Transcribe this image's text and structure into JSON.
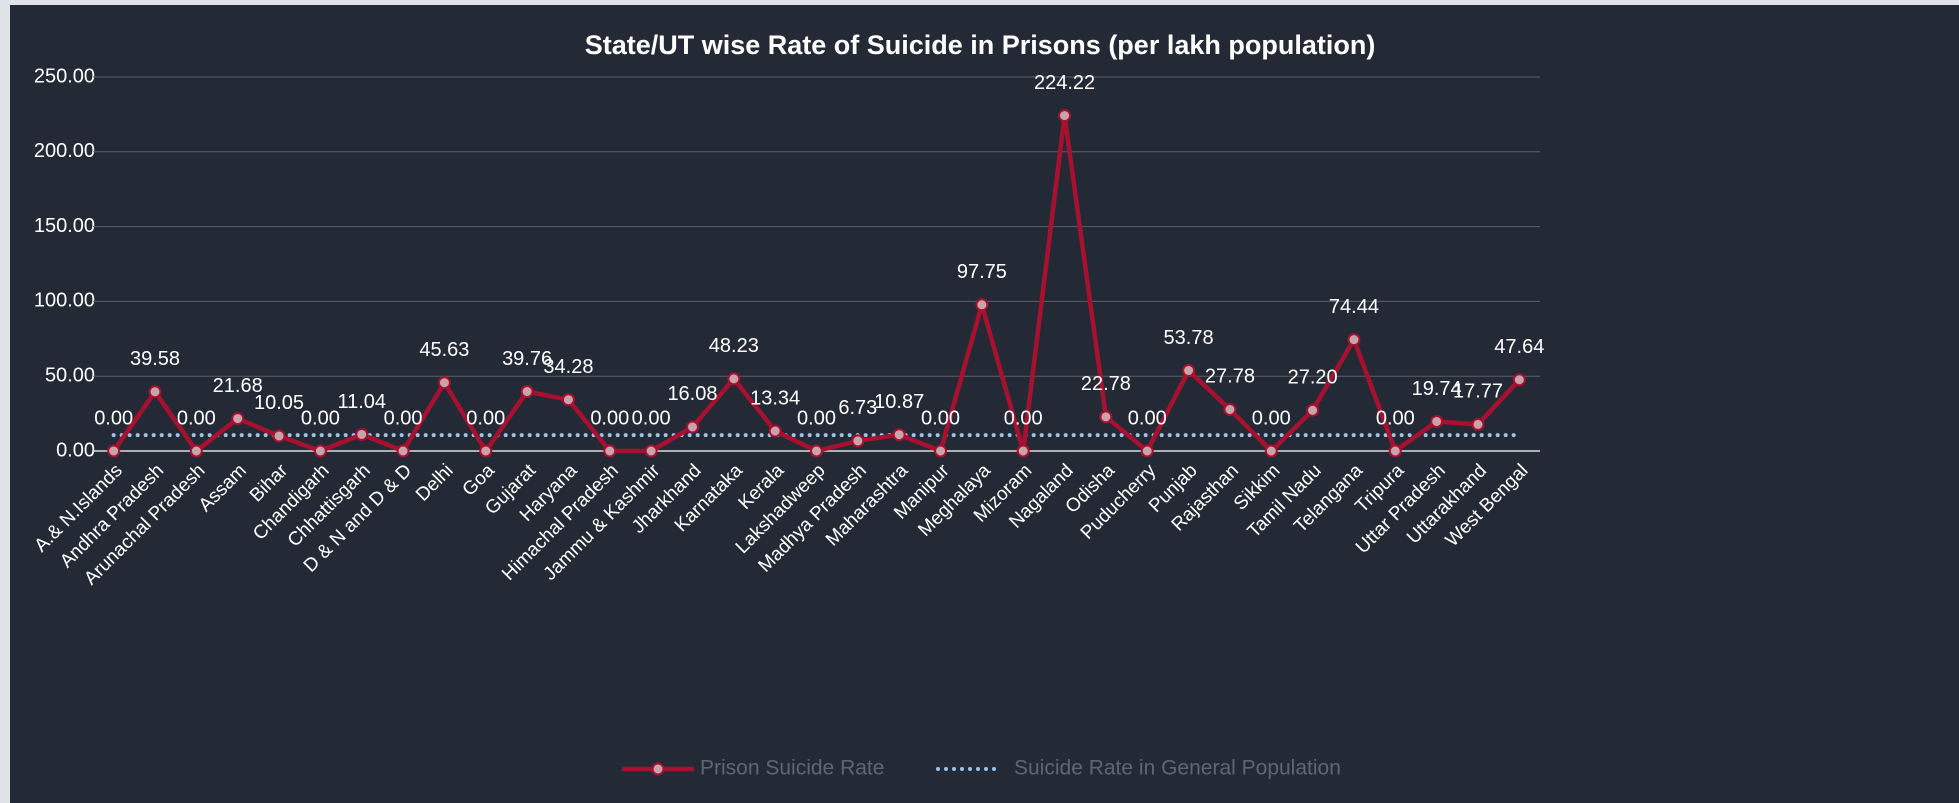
{
  "chart_data": {
    "type": "line",
    "title": "State/UT wise Rate of Suicide in Prisons (per lakh population)",
    "categories": [
      "A.& N.Islands",
      "Andhra Pradesh",
      "Arunachal Pradesh",
      "Assam",
      "Bihar",
      "Chandigarh",
      "Chhattisgarh",
      "D & N and D & D",
      "Delhi",
      "Goa",
      "Gujarat",
      "Haryana",
      "Himachal Pradesh",
      "Jammu & Kashmir",
      "Jharkhand",
      "Karnataka",
      "Kerala",
      "Lakshadweep",
      "Madhya Pradesh",
      "Maharashtra",
      "Manipur",
      "Meghalaya",
      "Mizoram",
      "Nagaland",
      "Odisha",
      "Puducherry",
      "Punjab",
      "Rajasthan",
      "Sikkim",
      "Tamil Nadu",
      "Telangana",
      "Tripura",
      "Uttar Pradesh",
      "Uttarakhand",
      "West Bengal"
    ],
    "series": [
      {
        "name": "Prison Suicide Rate",
        "color": "#a8102f",
        "marker": true,
        "line_style": "solid",
        "values": [
          0,
          39.58,
          0,
          21.68,
          10.05,
          0,
          11.04,
          0,
          45.63,
          0,
          39.76,
          34.28,
          0,
          0,
          16.08,
          48.23,
          13.34,
          0,
          6.73,
          10.87,
          0,
          97.75,
          0,
          224.22,
          22.78,
          0,
          53.78,
          27.78,
          0,
          27.2,
          74.44,
          0,
          19.74,
          17.77,
          47.64
        ],
        "value_labels": [
          "0.00",
          "39.58",
          "0.00",
          "21.68",
          "10.05",
          "0.00",
          "11.04",
          "0.00",
          "45.63",
          "0.00",
          "39.76",
          "34.28",
          "0.00",
          "0.00",
          "16.08",
          "48.23",
          "13.34",
          "0.00",
          "6.73",
          "10.87",
          "0.00",
          "97.75",
          "0.00",
          "224.22",
          "22.78",
          "0.00",
          "53.78",
          "27.78",
          "0.00",
          "27.20",
          "74.44",
          "0.00",
          "19.74",
          "17.77",
          "47.64"
        ]
      },
      {
        "name": "Suicide Rate in General Population",
        "color": "#9dc3e6",
        "marker": false,
        "line_style": "dotted",
        "values": [
          10.6,
          10.6,
          10.6,
          10.6,
          10.6,
          10.6,
          10.6,
          10.6,
          10.6,
          10.6,
          10.6,
          10.6,
          10.6,
          10.6,
          10.6,
          10.6,
          10.6,
          10.6,
          10.6,
          10.6,
          10.6,
          10.6,
          10.6,
          10.6,
          10.6,
          10.6,
          10.6,
          10.6,
          10.6,
          10.6,
          10.6,
          10.6,
          10.6,
          10.6,
          10.6
        ]
      }
    ],
    "ylim": [
      0,
      250
    ],
    "yticks": [
      {
        "value": 0,
        "label": "0.00"
      },
      {
        "value": 50,
        "label": "50.00"
      },
      {
        "value": 100,
        "label": "100.00"
      },
      {
        "value": 150,
        "label": "150.00"
      },
      {
        "value": 200,
        "label": "200.00"
      },
      {
        "value": 250,
        "label": "250.00"
      }
    ],
    "grid": true,
    "legend": "bottom"
  }
}
